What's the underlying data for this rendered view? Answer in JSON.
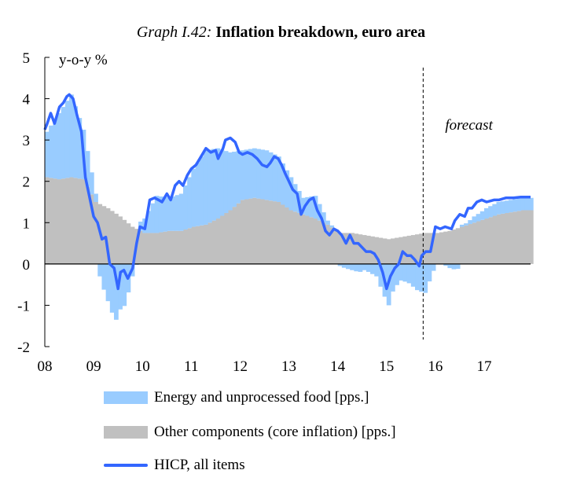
{
  "title": {
    "prefix": "Graph I.42:",
    "main": "Inflation breakdown, euro area"
  },
  "colors": {
    "energy": "#99ccff",
    "core": "#c0c0c0",
    "hicp": "#3366ff",
    "axis": "#000000"
  },
  "chart_data": {
    "type": "bar",
    "title": "Graph I.42: Inflation breakdown, euro area",
    "ylabel": "y-o-y %",
    "ylim": [
      -2,
      5
    ],
    "yticks": [
      5,
      4,
      3,
      2,
      1,
      0,
      -1,
      -2
    ],
    "xlim": [
      2008.0,
      2017.95
    ],
    "xticks": [
      {
        "label": "08",
        "x": 2008
      },
      {
        "label": "09",
        "x": 2009
      },
      {
        "label": "10",
        "x": 2010
      },
      {
        "label": "11",
        "x": 2011
      },
      {
        "label": "12",
        "x": 2012
      },
      {
        "label": "13",
        "x": 2013
      },
      {
        "label": "14",
        "x": 2014
      },
      {
        "label": "15",
        "x": 2015
      },
      {
        "label": "16",
        "x": 2016
      },
      {
        "label": "17",
        "x": 2017
      }
    ],
    "forecast": {
      "x": 2015.75,
      "label": "forecast"
    },
    "series": [
      {
        "name": "Energy and unprocessed food [pps.]",
        "kind": "bar",
        "points": [
          [
            2008.0,
            1.1
          ],
          [
            2008.25,
            1.6
          ],
          [
            2008.5,
            2.0
          ],
          [
            2008.75,
            1.2
          ],
          [
            2009.0,
            0.2
          ],
          [
            2009.1,
            -0.4
          ],
          [
            2009.25,
            -0.9
          ],
          [
            2009.4,
            -1.4
          ],
          [
            2009.5,
            -1.1
          ],
          [
            2009.6,
            -1.0
          ],
          [
            2009.75,
            -0.3
          ],
          [
            2009.9,
            0.2
          ],
          [
            2010.0,
            0.35
          ],
          [
            2010.25,
            0.9
          ],
          [
            2010.5,
            0.8
          ],
          [
            2010.75,
            0.9
          ],
          [
            2011.0,
            1.4
          ],
          [
            2011.25,
            1.8
          ],
          [
            2011.5,
            1.7
          ],
          [
            2011.75,
            1.4
          ],
          [
            2012.0,
            1.2
          ],
          [
            2012.25,
            1.2
          ],
          [
            2012.5,
            1.2
          ],
          [
            2012.75,
            1.1
          ],
          [
            2013.0,
            0.8
          ],
          [
            2013.25,
            0.4
          ],
          [
            2013.5,
            0.55
          ],
          [
            2013.75,
            0.1
          ],
          [
            2014.0,
            -0.05
          ],
          [
            2014.1,
            -0.1
          ],
          [
            2014.25,
            -0.15
          ],
          [
            2014.4,
            -0.2
          ],
          [
            2014.5,
            -0.15
          ],
          [
            2014.6,
            -0.2
          ],
          [
            2014.75,
            -0.3
          ],
          [
            2014.9,
            -0.75
          ],
          [
            2015.0,
            -1.0
          ],
          [
            2015.1,
            -0.6
          ],
          [
            2015.25,
            -0.4
          ],
          [
            2015.4,
            -0.45
          ],
          [
            2015.5,
            -0.55
          ],
          [
            2015.6,
            -0.65
          ],
          [
            2015.75,
            -0.7
          ],
          [
            2015.9,
            -0.2
          ],
          [
            2016.0,
            0.0
          ],
          [
            2016.1,
            0.0
          ],
          [
            2016.25,
            -0.1
          ],
          [
            2016.4,
            -0.15
          ],
          [
            2016.5,
            0.05
          ],
          [
            2016.6,
            0.05
          ],
          [
            2016.75,
            0.15
          ],
          [
            2016.9,
            0.2
          ],
          [
            2017.0,
            0.25
          ],
          [
            2017.25,
            0.3
          ],
          [
            2017.5,
            0.3
          ],
          [
            2017.75,
            0.3
          ]
        ]
      },
      {
        "name": "Other components (core inflation) [pps.]",
        "kind": "bar",
        "points": [
          [
            2008.0,
            2.1
          ],
          [
            2008.25,
            2.05
          ],
          [
            2008.5,
            2.1
          ],
          [
            2008.75,
            2.05
          ],
          [
            2009.0,
            1.5
          ],
          [
            2009.25,
            1.35
          ],
          [
            2009.5,
            1.15
          ],
          [
            2009.75,
            0.9
          ],
          [
            2010.0,
            0.75
          ],
          [
            2010.25,
            0.75
          ],
          [
            2010.5,
            0.8
          ],
          [
            2010.75,
            0.8
          ],
          [
            2011.0,
            0.9
          ],
          [
            2011.25,
            0.95
          ],
          [
            2011.5,
            1.1
          ],
          [
            2011.75,
            1.3
          ],
          [
            2012.0,
            1.55
          ],
          [
            2012.25,
            1.6
          ],
          [
            2012.5,
            1.55
          ],
          [
            2012.75,
            1.5
          ],
          [
            2013.0,
            1.3
          ],
          [
            2013.25,
            1.2
          ],
          [
            2013.5,
            1.1
          ],
          [
            2013.75,
            0.95
          ],
          [
            2014.0,
            0.75
          ],
          [
            2014.25,
            0.75
          ],
          [
            2014.5,
            0.7
          ],
          [
            2014.75,
            0.65
          ],
          [
            2015.0,
            0.6
          ],
          [
            2015.25,
            0.65
          ],
          [
            2015.5,
            0.7
          ],
          [
            2015.75,
            0.75
          ],
          [
            2016.0,
            0.75
          ],
          [
            2016.25,
            0.8
          ],
          [
            2016.5,
            0.9
          ],
          [
            2016.75,
            1.0
          ],
          [
            2017.0,
            1.1
          ],
          [
            2017.25,
            1.2
          ],
          [
            2017.5,
            1.25
          ],
          [
            2017.75,
            1.3
          ]
        ]
      },
      {
        "name": "HICP, all items",
        "kind": "line",
        "points": [
          [
            2008.0,
            3.25
          ],
          [
            2008.05,
            3.4
          ],
          [
            2008.12,
            3.65
          ],
          [
            2008.2,
            3.4
          ],
          [
            2008.3,
            3.8
          ],
          [
            2008.38,
            3.9
          ],
          [
            2008.45,
            4.05
          ],
          [
            2008.5,
            4.1
          ],
          [
            2008.58,
            4.0
          ],
          [
            2008.66,
            3.6
          ],
          [
            2008.75,
            3.2
          ],
          [
            2008.83,
            2.1
          ],
          [
            2008.92,
            1.6
          ],
          [
            2009.0,
            1.15
          ],
          [
            2009.08,
            1.0
          ],
          [
            2009.17,
            0.6
          ],
          [
            2009.25,
            0.65
          ],
          [
            2009.33,
            0.0
          ],
          [
            2009.42,
            -0.1
          ],
          [
            2009.5,
            -0.6
          ],
          [
            2009.55,
            -0.2
          ],
          [
            2009.62,
            -0.15
          ],
          [
            2009.7,
            -0.35
          ],
          [
            2009.8,
            -0.1
          ],
          [
            2009.88,
            0.5
          ],
          [
            2009.95,
            0.9
          ],
          [
            2010.05,
            0.85
          ],
          [
            2010.15,
            1.55
          ],
          [
            2010.25,
            1.6
          ],
          [
            2010.33,
            1.55
          ],
          [
            2010.4,
            1.5
          ],
          [
            2010.5,
            1.7
          ],
          [
            2010.58,
            1.55
          ],
          [
            2010.67,
            1.9
          ],
          [
            2010.75,
            2.0
          ],
          [
            2010.83,
            1.9
          ],
          [
            2010.92,
            2.15
          ],
          [
            2011.0,
            2.3
          ],
          [
            2011.1,
            2.4
          ],
          [
            2011.2,
            2.6
          ],
          [
            2011.3,
            2.8
          ],
          [
            2011.4,
            2.7
          ],
          [
            2011.5,
            2.75
          ],
          [
            2011.55,
            2.55
          ],
          [
            2011.65,
            2.8
          ],
          [
            2011.7,
            3.0
          ],
          [
            2011.8,
            3.05
          ],
          [
            2011.9,
            2.95
          ],
          [
            2011.98,
            2.7
          ],
          [
            2012.05,
            2.65
          ],
          [
            2012.15,
            2.7
          ],
          [
            2012.25,
            2.65
          ],
          [
            2012.35,
            2.55
          ],
          [
            2012.45,
            2.4
          ],
          [
            2012.55,
            2.35
          ],
          [
            2012.62,
            2.45
          ],
          [
            2012.7,
            2.6
          ],
          [
            2012.78,
            2.55
          ],
          [
            2012.85,
            2.4
          ],
          [
            2012.92,
            2.2
          ],
          [
            2013.0,
            2.0
          ],
          [
            2013.08,
            1.8
          ],
          [
            2013.17,
            1.7
          ],
          [
            2013.25,
            1.2
          ],
          [
            2013.33,
            1.4
          ],
          [
            2013.42,
            1.55
          ],
          [
            2013.5,
            1.6
          ],
          [
            2013.58,
            1.3
          ],
          [
            2013.67,
            1.1
          ],
          [
            2013.75,
            0.8
          ],
          [
            2013.83,
            0.7
          ],
          [
            2013.92,
            0.85
          ],
          [
            2014.0,
            0.8
          ],
          [
            2014.08,
            0.7
          ],
          [
            2014.17,
            0.5
          ],
          [
            2014.25,
            0.7
          ],
          [
            2014.33,
            0.5
          ],
          [
            2014.42,
            0.5
          ],
          [
            2014.5,
            0.4
          ],
          [
            2014.58,
            0.3
          ],
          [
            2014.67,
            0.3
          ],
          [
            2014.75,
            0.25
          ],
          [
            2014.83,
            0.1
          ],
          [
            2014.92,
            -0.2
          ],
          [
            2015.0,
            -0.6
          ],
          [
            2015.08,
            -0.3
          ],
          [
            2015.17,
            -0.1
          ],
          [
            2015.25,
            0.0
          ],
          [
            2015.33,
            0.3
          ],
          [
            2015.42,
            0.2
          ],
          [
            2015.5,
            0.2
          ],
          [
            2015.58,
            0.1
          ],
          [
            2015.67,
            -0.05
          ],
          [
            2015.72,
            0.2
          ],
          [
            2015.8,
            0.3
          ],
          [
            2015.9,
            0.3
          ],
          [
            2016.0,
            0.9
          ],
          [
            2016.1,
            0.85
          ],
          [
            2016.2,
            0.9
          ],
          [
            2016.33,
            0.85
          ],
          [
            2016.4,
            1.05
          ],
          [
            2016.5,
            1.2
          ],
          [
            2016.6,
            1.15
          ],
          [
            2016.67,
            1.35
          ],
          [
            2016.75,
            1.35
          ],
          [
            2016.85,
            1.5
          ],
          [
            2016.95,
            1.55
          ],
          [
            2017.05,
            1.5
          ],
          [
            2017.2,
            1.55
          ],
          [
            2017.3,
            1.55
          ],
          [
            2017.45,
            1.6
          ],
          [
            2017.6,
            1.6
          ],
          [
            2017.75,
            1.62
          ],
          [
            2017.95,
            1.62
          ]
        ]
      }
    ]
  }
}
